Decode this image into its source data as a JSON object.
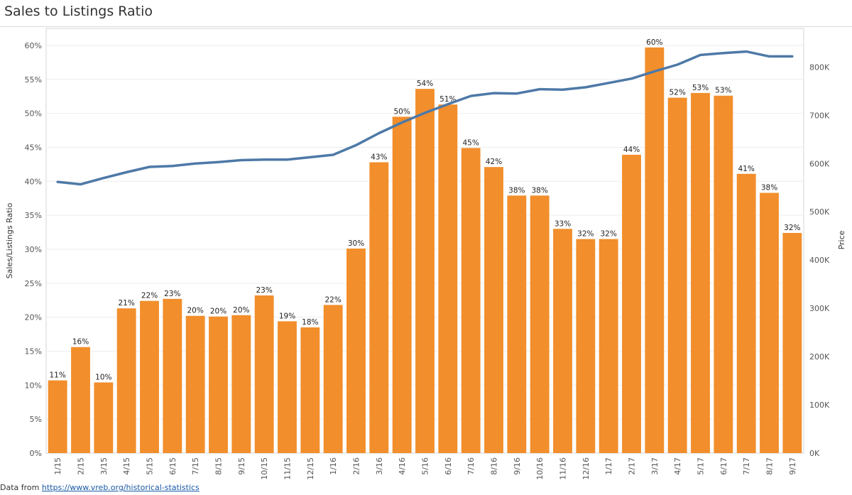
{
  "chart_data": {
    "type": "bar",
    "title": "Sales to Listings Ratio",
    "xlabel": "",
    "ylabel": "Sales/Listings Ratio",
    "y2label": "Price",
    "categories": [
      "1/15",
      "2/15",
      "3/15",
      "4/15",
      "5/15",
      "6/15",
      "7/15",
      "8/15",
      "9/15",
      "10/15",
      "11/15",
      "12/15",
      "1/16",
      "2/16",
      "3/16",
      "4/16",
      "5/16",
      "6/16",
      "7/16",
      "8/16",
      "9/16",
      "10/16",
      "11/16",
      "12/16",
      "1/17",
      "2/17",
      "3/17",
      "4/17",
      "5/17",
      "6/17",
      "7/17",
      "8/17",
      "9/17"
    ],
    "ylim": [
      0,
      62.5
    ],
    "y_ticks": [
      "0%",
      "5%",
      "10%",
      "15%",
      "20%",
      "25%",
      "30%",
      "35%",
      "40%",
      "45%",
      "50%",
      "55%",
      "60%"
    ],
    "y2lim": [
      0,
      880000
    ],
    "y2_ticks": [
      "0K",
      "100K",
      "200K",
      "300K",
      "400K",
      "500K",
      "600K",
      "700K",
      "800K"
    ],
    "grid": true,
    "series": [
      {
        "type": "bar",
        "color": "#F28E2B",
        "values": [
          10.7,
          15.6,
          10.4,
          21.3,
          22.4,
          22.7,
          20.2,
          20.1,
          20.3,
          23.2,
          19.4,
          18.5,
          21.8,
          30.1,
          42.8,
          49.5,
          53.6,
          51.3,
          44.9,
          42.1,
          37.9,
          37.9,
          33.0,
          31.5,
          31.5,
          43.9,
          59.7,
          52.3,
          53.0,
          52.6,
          41.1,
          38.3,
          32.4
        ],
        "labels": [
          "11%",
          "16%",
          "10%",
          "21%",
          "22%",
          "23%",
          "20%",
          "20%",
          "20%",
          "23%",
          "19%",
          "18%",
          "22%",
          "30%",
          "43%",
          "50%",
          "54%",
          "51%",
          "45%",
          "42%",
          "38%",
          "38%",
          "33%",
          "32%",
          "32%",
          "44%",
          "60%",
          "52%",
          "53%",
          "53%",
          "41%",
          "38%",
          "32%"
        ]
      },
      {
        "type": "line",
        "color": "#4E79A7",
        "axis": "right",
        "values": [
          562000,
          557000,
          570000,
          582000,
          593000,
          595000,
          600000,
          603000,
          607000,
          608000,
          608000,
          613000,
          618000,
          638000,
          663000,
          685000,
          705000,
          723000,
          740000,
          746000,
          745000,
          754000,
          753000,
          758000,
          767000,
          776000,
          791000,
          805000,
          825000,
          829000,
          832000,
          822000,
          822000
        ]
      }
    ]
  },
  "footer": {
    "prefix": "Data from ",
    "link": "https://www.vreb.org/historical-statistics"
  }
}
